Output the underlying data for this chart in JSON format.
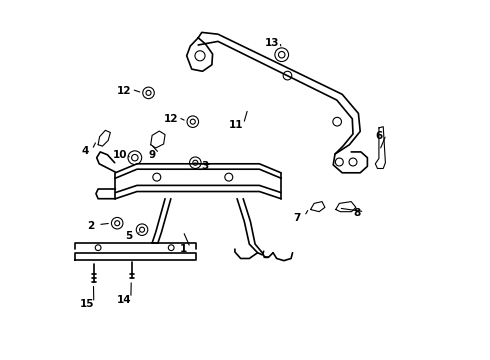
{
  "background_color": "#ffffff",
  "line_color": "#000000",
  "label_color": "#000000",
  "figure_width": 4.9,
  "figure_height": 3.6,
  "dpi": 100
}
